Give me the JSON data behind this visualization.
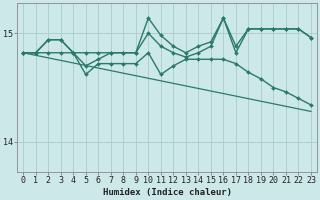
{
  "xlabel": "Humidex (Indice chaleur)",
  "ylabel": "",
  "bg_color": "#cce8e8",
  "grid_color": "#aacccc",
  "line_color": "#2a7a6a",
  "xlim": [
    -0.5,
    23.5
  ],
  "ylim": [
    13.72,
    15.28
  ],
  "yticks": [
    14,
    15
  ],
  "xticks": [
    0,
    1,
    2,
    3,
    4,
    5,
    6,
    7,
    8,
    9,
    10,
    11,
    12,
    13,
    14,
    15,
    16,
    17,
    18,
    19,
    20,
    21,
    22,
    23
  ],
  "series": [
    {
      "x": [
        0,
        1,
        2,
        3,
        4,
        5,
        6,
        7,
        8,
        9,
        10,
        11,
        12,
        13,
        14,
        15,
        16,
        17,
        18,
        19,
        20,
        21,
        22,
        23
      ],
      "y": [
        14.82,
        14.82,
        14.94,
        14.94,
        14.82,
        14.82,
        14.82,
        14.82,
        14.82,
        14.82,
        15.14,
        14.98,
        14.88,
        14.82,
        14.88,
        14.92,
        15.14,
        14.88,
        15.04,
        15.04,
        15.04,
        15.04,
        15.04,
        14.96
      ],
      "marker": "D",
      "markersize": 2.0,
      "linewidth": 1.0
    },
    {
      "x": [
        0,
        1,
        2,
        3,
        4,
        5,
        6,
        7,
        8,
        9,
        10,
        11,
        12,
        13,
        14,
        15,
        16,
        17,
        18,
        19,
        20,
        21,
        22,
        23
      ],
      "y": [
        14.82,
        14.82,
        14.94,
        14.94,
        14.82,
        14.7,
        14.76,
        14.82,
        14.82,
        14.82,
        15.0,
        14.88,
        14.82,
        14.78,
        14.82,
        14.88,
        15.14,
        14.82,
        15.04,
        15.04,
        15.04,
        15.04,
        15.04,
        14.96
      ],
      "marker": "D",
      "markersize": 2.0,
      "linewidth": 1.0
    },
    {
      "x": [
        0,
        1,
        2,
        3,
        4,
        5,
        6,
        7,
        8,
        9,
        10,
        11,
        12,
        13,
        14,
        15,
        16,
        17,
        18,
        19,
        20,
        21,
        22,
        23
      ],
      "y": [
        14.82,
        14.82,
        14.82,
        14.82,
        14.82,
        14.62,
        14.72,
        14.72,
        14.72,
        14.72,
        14.82,
        14.62,
        14.7,
        14.76,
        14.76,
        14.76,
        14.76,
        14.72,
        14.64,
        14.58,
        14.5,
        14.46,
        14.4,
        14.34
      ],
      "marker": "D",
      "markersize": 2.0,
      "linewidth": 1.0
    },
    {
      "x": [
        0,
        23
      ],
      "y": [
        14.82,
        14.28
      ],
      "marker": null,
      "markersize": 0,
      "linewidth": 0.9,
      "linestyle": "-"
    }
  ]
}
